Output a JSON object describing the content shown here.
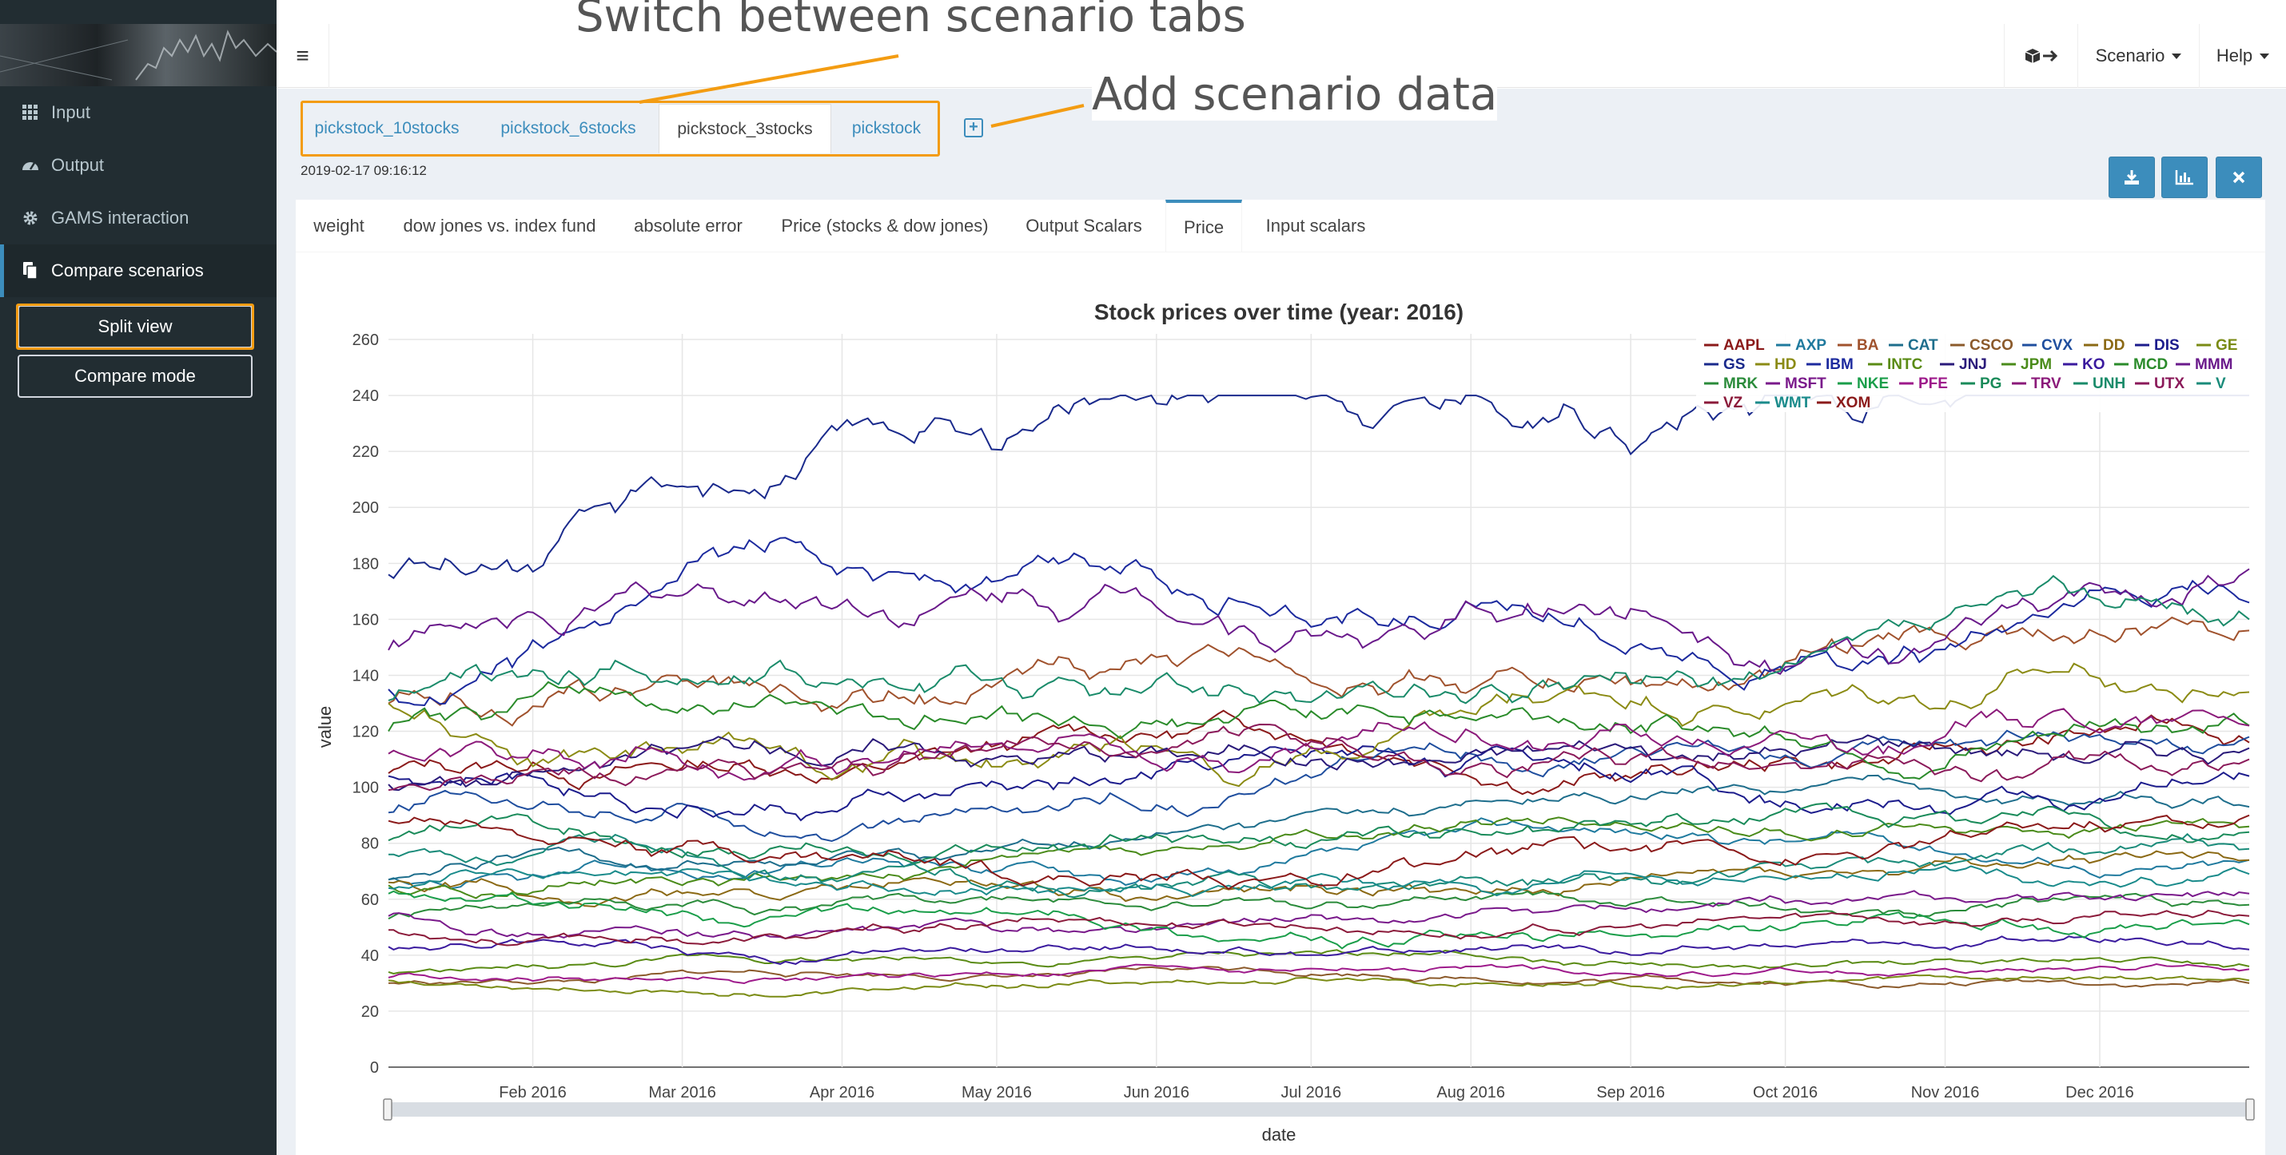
{
  "annotations": {
    "switch_tabs": "Switch between scenario tabs",
    "add_data": "Add scenario data",
    "highlight_color": "#f39c12"
  },
  "sidebar": {
    "items": [
      {
        "label": "Input",
        "icon": "grid-icon"
      },
      {
        "label": "Output",
        "icon": "dashboard-icon"
      },
      {
        "label": "GAMS interaction",
        "icon": "gear-icon"
      },
      {
        "label": "Compare scenarios",
        "icon": "copy-icon"
      }
    ],
    "split_view_label": "Split view",
    "compare_mode_label": "Compare mode"
  },
  "header": {
    "hamburger_icon": "hamburger-icon",
    "scenario_label": "Scenario",
    "help_label": "Help",
    "export_icon": "cube-arrow-icon"
  },
  "scenario_tabs": [
    "pickstock_10stocks",
    "pickstock_6stocks",
    "pickstock_3stocks",
    "pickstock"
  ],
  "active_scenario_tab": "pickstock_3stocks",
  "timestamp": "2019-02-17 09:16:12",
  "actions": [
    "download-icon",
    "chart-icon",
    "close-icon"
  ],
  "inner_tabs": [
    "weight",
    "dow jones vs. index fund",
    "absolute error",
    "Price (stocks & dow jones)",
    "Output Scalars",
    "Price",
    "Input scalars"
  ],
  "active_inner_tab": "Price",
  "colors": {
    "accent": "#3c8dbc",
    "sidebar_bg": "#222d32",
    "content_bg": "#ecf0f5"
  },
  "chart_data": {
    "type": "line",
    "title": "Stock prices over time (year: 2016)",
    "xlabel": "date",
    "ylabel": "value",
    "xlim": [
      "2016-01-04",
      "2016-12-30"
    ],
    "ylim": [
      0,
      262
    ],
    "y_ticks": [
      0,
      20,
      40,
      60,
      80,
      100,
      120,
      140,
      160,
      180,
      200,
      220,
      240,
      260
    ],
    "x_ticks": [
      "Feb 2016",
      "Mar 2016",
      "Apr 2016",
      "May 2016",
      "Jun 2016",
      "Jul 2016",
      "Aug 2016",
      "Sep 2016",
      "Oct 2016",
      "Nov 2016",
      "Dec 2016"
    ],
    "grid": true,
    "legend_position": "top-right",
    "range_slider": true,
    "series": [
      {
        "name": "AAPL",
        "color": "#8b1a1a",
        "start": 105,
        "end": 116
      },
      {
        "name": "AXP",
        "color": "#1f7a9e",
        "start": 67,
        "end": 74
      },
      {
        "name": "BA",
        "color": "#a0522d",
        "start": 130,
        "end": 156
      },
      {
        "name": "CAT",
        "color": "#1e6e8c",
        "start": 67,
        "end": 93
      },
      {
        "name": "CSCO",
        "color": "#8b5a2b",
        "start": 30,
        "end": 30
      },
      {
        "name": "CVX",
        "color": "#1f4e9e",
        "start": 91,
        "end": 118
      },
      {
        "name": "DD",
        "color": "#8b6914",
        "start": 66,
        "end": 74
      },
      {
        "name": "DIS",
        "color": "#1c1c8c",
        "start": 104,
        "end": 104
      },
      {
        "name": "GE",
        "color": "#7a8b14",
        "start": 31,
        "end": 31
      },
      {
        "name": "GS",
        "color": "#1a2a8c",
        "start": 176,
        "end": 240
      },
      {
        "name": "HD",
        "color": "#8b8b14",
        "start": 130,
        "end": 134
      },
      {
        "name": "IBM",
        "color": "#1c2a9e",
        "start": 135,
        "end": 166
      },
      {
        "name": "INTC",
        "color": "#5a8b14",
        "start": 34,
        "end": 36
      },
      {
        "name": "JNJ",
        "color": "#2a1a7a",
        "start": 101,
        "end": 114
      },
      {
        "name": "JPM",
        "color": "#4a8b1a",
        "start": 65,
        "end": 86
      },
      {
        "name": "KO",
        "color": "#3a1a9e",
        "start": 43,
        "end": 42
      },
      {
        "name": "MCD",
        "color": "#2a8b2a",
        "start": 120,
        "end": 122
      },
      {
        "name": "MMM",
        "color": "#6a1a8b",
        "start": 149,
        "end": 178
      },
      {
        "name": "MRK",
        "color": "#2a8b3a",
        "start": 53,
        "end": 58
      },
      {
        "name": "MSFT",
        "color": "#7a1a8b",
        "start": 54,
        "end": 62
      },
      {
        "name": "NKE",
        "color": "#1a9e4a",
        "start": 62,
        "end": 51
      },
      {
        "name": "PFE",
        "color": "#9e1a8b",
        "start": 32,
        "end": 35
      },
      {
        "name": "PG",
        "color": "#1a8b5a",
        "start": 81,
        "end": 84
      },
      {
        "name": "TRV",
        "color": "#8b1a7a",
        "start": 112,
        "end": 122
      },
      {
        "name": "UNH",
        "color": "#1a8b6a",
        "start": 131,
        "end": 160
      },
      {
        "name": "UTX",
        "color": "#8b1a5a",
        "start": 99,
        "end": 110
      },
      {
        "name": "V",
        "color": "#1a8b7a",
        "start": 76,
        "end": 78
      },
      {
        "name": "VZ",
        "color": "#8b1a3a",
        "start": 49,
        "end": 54
      },
      {
        "name": "WMT",
        "color": "#1a8b8b",
        "start": 64,
        "end": 69
      },
      {
        "name": "XOM",
        "color": "#8b1a1a",
        "start": 88,
        "end": 90
      }
    ]
  }
}
